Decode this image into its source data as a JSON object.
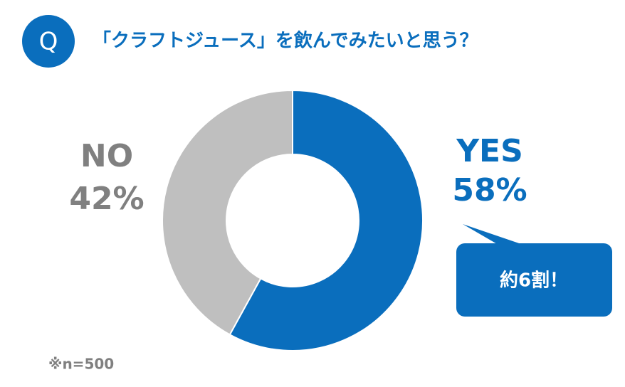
{
  "chart_data": {
    "type": "pie",
    "donut": true,
    "badge": "Q",
    "title": "「クラフトジュース」を飲んでみたいと思う？",
    "categories": [
      "YES",
      "NO"
    ],
    "values": [
      58,
      42
    ],
    "value_labels": [
      "58%",
      "42%"
    ],
    "colors": [
      "#0a6ebd",
      "#bfbfbf"
    ],
    "label_colors": [
      "#0a6ebd",
      "#808080"
    ],
    "annotation": "約6割！",
    "note": "※n=500"
  }
}
